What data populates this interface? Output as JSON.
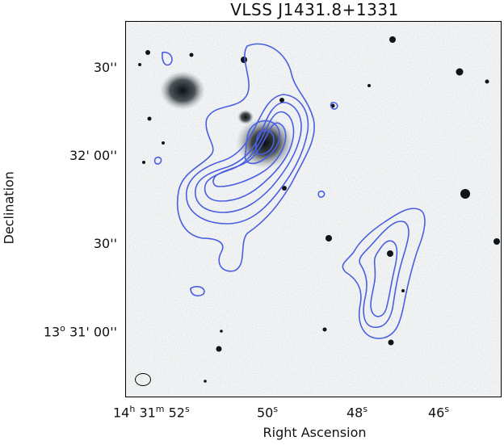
{
  "title": "VLSS J1431.8+1331",
  "axes": {
    "y_title": "Declination",
    "x_title": "Right Ascension",
    "y_ticks": [
      {
        "main": "30''"
      },
      {
        "main": "32' 00''"
      },
      {
        "main": "30''"
      },
      {
        "main": "13",
        "sup": "o",
        "rest": " 31' 00''"
      }
    ],
    "x_ticks": [
      {
        "h": "14",
        "m": "31",
        "s": "52"
      },
      {
        "s": "50"
      },
      {
        "s": "48"
      },
      {
        "s": "46"
      }
    ]
  },
  "colors": {
    "contour": "#4a5fe0",
    "background": "#bcc6c8",
    "star": "#101418"
  },
  "image_description_tag": "grayscale optical field with blue radio contours"
}
